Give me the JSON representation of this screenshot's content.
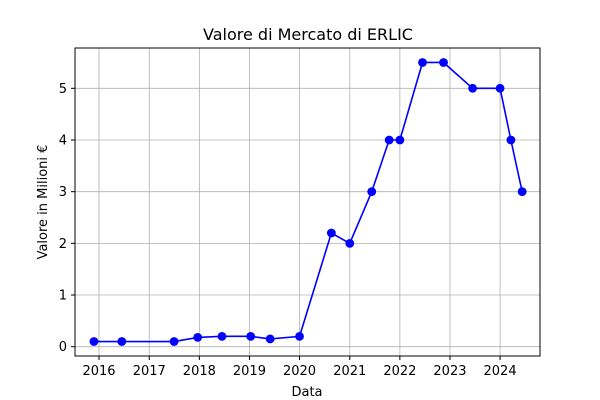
{
  "chart_data": {
    "type": "line",
    "title": "Valore di Mercato di ERLIC",
    "xlabel": "Data",
    "ylabel": "Valore in Milioni €",
    "x_ticks": [
      "2016",
      "2017",
      "2018",
      "2019",
      "2020",
      "2021",
      "2022",
      "2023",
      "2024"
    ],
    "y_ticks": [
      0,
      1,
      2,
      3,
      4,
      5
    ],
    "xlim": [
      "2015-07-10",
      "2024-10-18"
    ],
    "ylim": [
      -0.18,
      5.78
    ],
    "grid": true,
    "series": [
      {
        "color": "#0000ff",
        "points": [
          {
            "x": "2015-11-25",
            "y": 0.1
          },
          {
            "x": "2016-06-15",
            "y": 0.1
          },
          {
            "x": "2017-07-01",
            "y": 0.1
          },
          {
            "x": "2017-12-20",
            "y": 0.18
          },
          {
            "x": "2018-06-15",
            "y": 0.2
          },
          {
            "x": "2019-01-10",
            "y": 0.2
          },
          {
            "x": "2019-06-01",
            "y": 0.15
          },
          {
            "x": "2020-01-01",
            "y": 0.2
          },
          {
            "x": "2020-08-20",
            "y": 2.2
          },
          {
            "x": "2021-01-01",
            "y": 2.0
          },
          {
            "x": "2021-06-10",
            "y": 3.0
          },
          {
            "x": "2021-10-15",
            "y": 4.0
          },
          {
            "x": "2022-01-01",
            "y": 4.0
          },
          {
            "x": "2022-06-15",
            "y": 5.5
          },
          {
            "x": "2022-11-15",
            "y": 5.5
          },
          {
            "x": "2023-06-15",
            "y": 5.0
          },
          {
            "x": "2024-01-01",
            "y": 5.0
          },
          {
            "x": "2024-03-20",
            "y": 4.0
          },
          {
            "x": "2024-06-10",
            "y": 3.0
          }
        ]
      }
    ]
  }
}
